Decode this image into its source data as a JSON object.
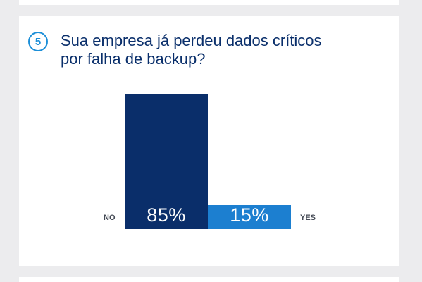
{
  "question": {
    "number": "5",
    "title_line1": "Sua empresa já perdeu dados críticos",
    "title_line2": "por falha de backup?"
  },
  "chart_data": {
    "type": "bar",
    "categories": [
      "NO",
      "YES"
    ],
    "values": [
      85,
      15
    ],
    "value_labels": [
      "85%",
      "15%"
    ],
    "ylim": [
      0,
      100
    ],
    "colors": [
      "#0a2e6a",
      "#1c7fd0"
    ]
  }
}
